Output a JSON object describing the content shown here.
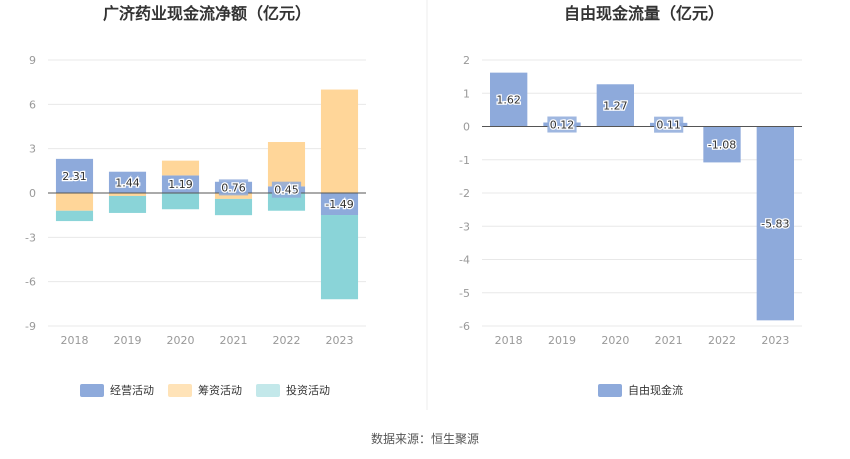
{
  "source_label": "数据来源：恒生聚源",
  "chart_data": [
    {
      "type": "bar",
      "stacked": true,
      "title": "广济药业现金流净额（亿元）",
      "categories": [
        "2018",
        "2019",
        "2020",
        "2021",
        "2022",
        "2023"
      ],
      "ylim": [
        -9,
        9
      ],
      "yticks": [
        -9,
        -6,
        -3,
        0,
        3,
        6,
        9
      ],
      "series": [
        {
          "name": "经营活动",
          "color": "#8eaadb",
          "values": [
            2.31,
            1.44,
            1.19,
            0.76,
            0.45,
            -1.49
          ],
          "show_labels": true
        },
        {
          "name": "筹资活动",
          "color": "#ffd699",
          "values": [
            -1.2,
            -0.2,
            1.0,
            -0.4,
            3.0,
            7.0
          ],
          "show_labels": false
        },
        {
          "name": "投资活动",
          "color": "#8ad4d8",
          "values": [
            -0.7,
            -1.15,
            -1.1,
            -1.1,
            -1.2,
            -5.7
          ],
          "show_labels": false
        }
      ],
      "legend_position": "bottom",
      "legend_colors": [
        "#8eaadb",
        "#ffe3b8",
        "#c3e8ea"
      ],
      "grid": true
    },
    {
      "type": "bar",
      "title": "自由现金流量（亿元）",
      "categories": [
        "2018",
        "2019",
        "2020",
        "2021",
        "2022",
        "2023"
      ],
      "ylim": [
        -6,
        2
      ],
      "yticks": [
        -6,
        -5,
        -4,
        -3,
        -2,
        -1,
        0,
        1,
        2
      ],
      "series": [
        {
          "name": "自由现金流",
          "color": "#8eaadb",
          "values": [
            1.62,
            0.12,
            1.27,
            0.11,
            -1.08,
            -5.83
          ],
          "show_labels": true
        }
      ],
      "legend_position": "bottom",
      "grid": true
    }
  ]
}
